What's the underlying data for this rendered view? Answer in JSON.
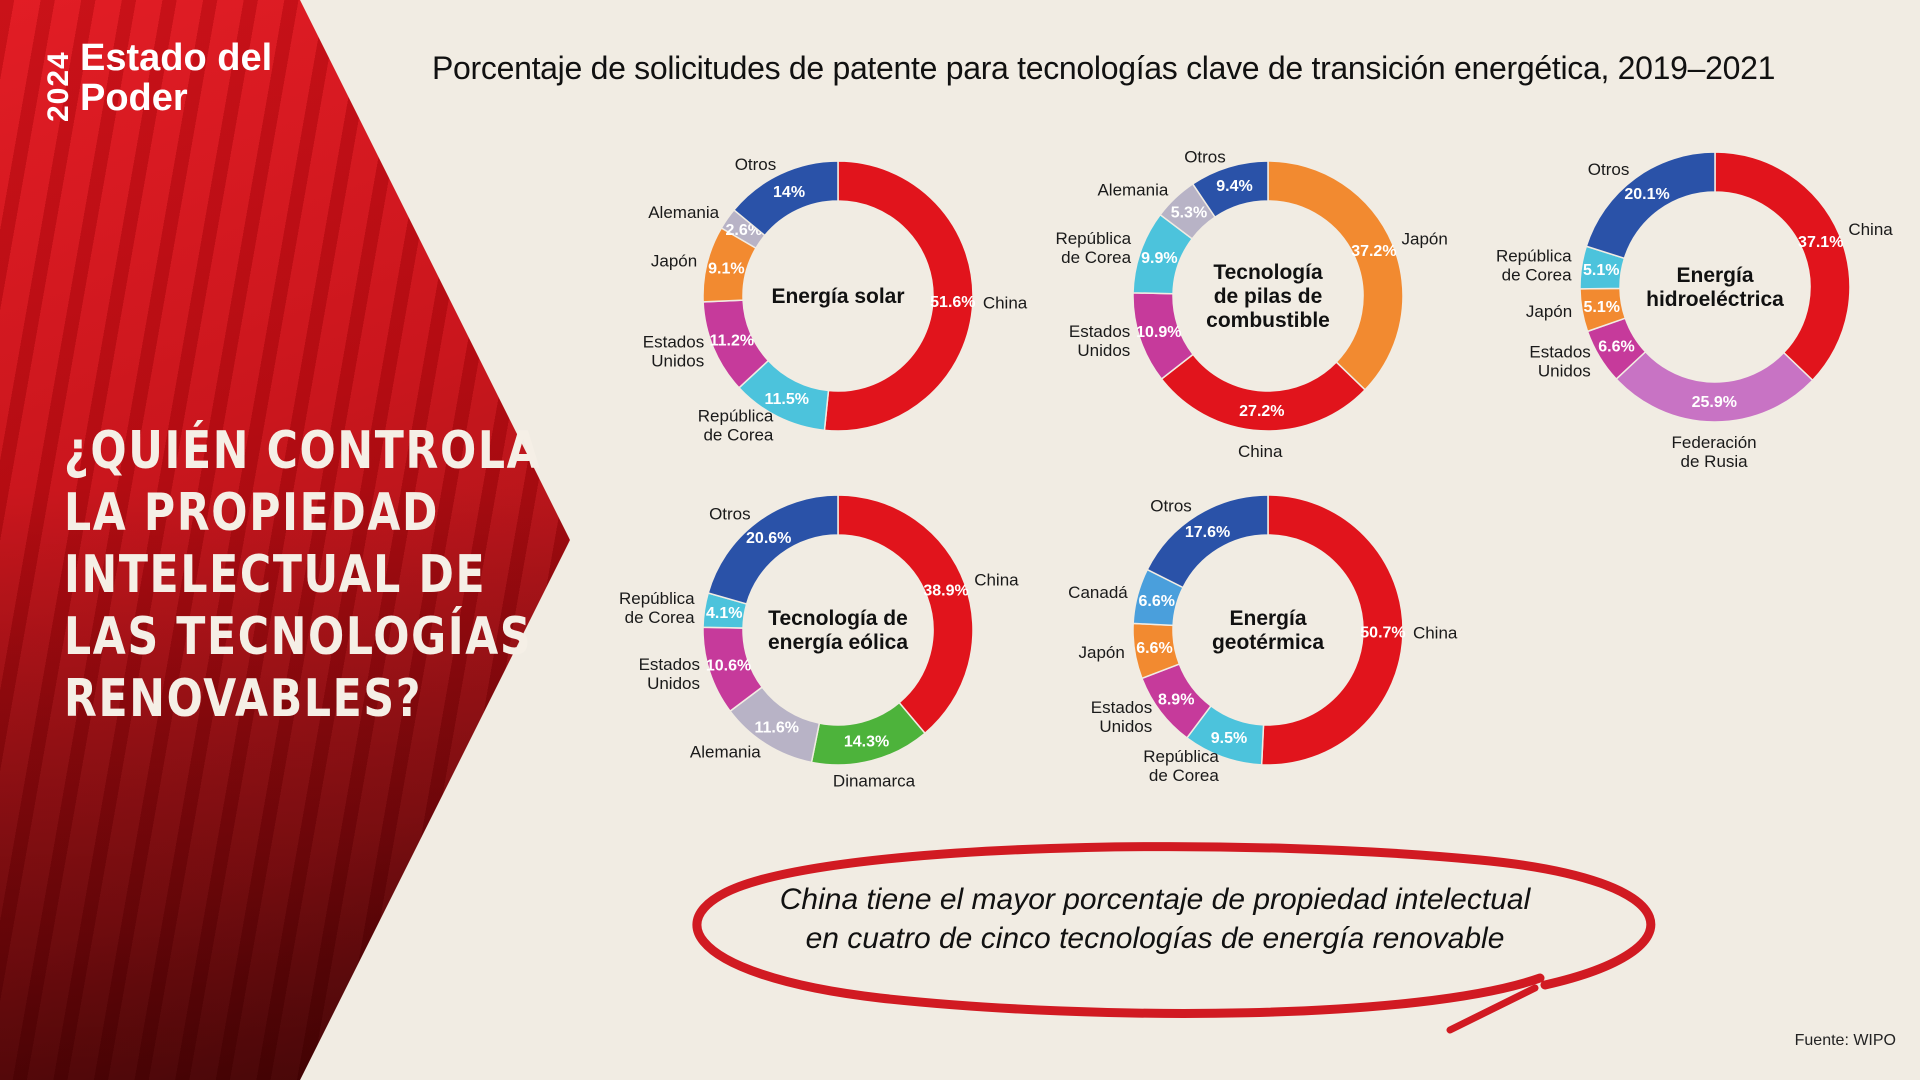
{
  "brand": {
    "year": "2024",
    "line1": "Estado del",
    "line2": "Poder"
  },
  "headline": [
    "¿QUIÉN CONTROLA",
    "LA PROPIEDAD",
    "INTELECTUAL DE",
    "LAS TECNOLOGÍAS",
    "RENOVABLES?"
  ],
  "main_title": "Porcentaje de solicitudes de patente para tecnologías clave de transición energética, 2019–2021",
  "callout": "China tiene el mayor porcentaje de propiedad intelectual en cuatro de cinco tecnologías de energía renovable",
  "source": "Fuente: WIPO",
  "colors": {
    "China": "#e1141c",
    "Japón": "#f28a30",
    "Estados Unidos": "#c63a9b",
    "República de Corea": "#4cc3dc",
    "Alemania": "#b8b3c6",
    "Otros": "#2a52a8",
    "Federación de Rusia": "#c873c4",
    "Dinamarca": "#4db33b",
    "Canadá": "#4a9fdc",
    "accent": "#d11a22"
  },
  "chart_data": [
    {
      "type": "pie",
      "title": [
        "Energía solar"
      ],
      "slices": [
        {
          "name": "China",
          "label": [
            "China"
          ],
          "value": 51.6,
          "display": "51.6%"
        },
        {
          "name": "República de Corea",
          "label": [
            "República",
            "de Corea"
          ],
          "value": 11.5,
          "display": "11.5%"
        },
        {
          "name": "Estados Unidos",
          "label": [
            "Estados",
            "Unidos"
          ],
          "value": 11.2,
          "display": "11.2%"
        },
        {
          "name": "Japón",
          "label": [
            "Japón"
          ],
          "value": 9.1,
          "display": "9.1%"
        },
        {
          "name": "Alemania",
          "label": [
            "Alemania"
          ],
          "value": 2.6,
          "display": "2.6%"
        },
        {
          "name": "Otros",
          "label": [
            "Otros"
          ],
          "value": 14.0,
          "display": "14%"
        }
      ]
    },
    {
      "type": "pie",
      "title": [
        "Tecnología",
        "de pilas de",
        "combustible"
      ],
      "slices": [
        {
          "name": "Japón",
          "label": [
            "Japón"
          ],
          "value": 37.2,
          "display": "37.2%"
        },
        {
          "name": "China",
          "label": [
            "China"
          ],
          "value": 27.2,
          "display": "27.2%"
        },
        {
          "name": "Estados Unidos",
          "label": [
            "Estados",
            "Unidos"
          ],
          "value": 10.9,
          "display": "10.9%"
        },
        {
          "name": "República de Corea",
          "label": [
            "República",
            "de Corea"
          ],
          "value": 9.9,
          "display": "9.9%"
        },
        {
          "name": "Alemania",
          "label": [
            "Alemania"
          ],
          "value": 5.3,
          "display": "5.3%"
        },
        {
          "name": "Otros",
          "label": [
            "Otros"
          ],
          "value": 9.4,
          "display": "9.4%"
        }
      ]
    },
    {
      "type": "pie",
      "title": [
        "Energía",
        "hidroeléctrica"
      ],
      "slices": [
        {
          "name": "China",
          "label": [
            "China"
          ],
          "value": 37.1,
          "display": "37.1%"
        },
        {
          "name": "Federación de Rusia",
          "label": [
            "Federación",
            "de Rusia"
          ],
          "value": 25.9,
          "display": "25.9%"
        },
        {
          "name": "Estados Unidos",
          "label": [
            "Estados",
            "Unidos"
          ],
          "value": 6.6,
          "display": "6.6%"
        },
        {
          "name": "Japón",
          "label": [
            "Japón"
          ],
          "value": 5.1,
          "display": "5.1%"
        },
        {
          "name": "República de Corea",
          "label": [
            "República",
            "de Corea"
          ],
          "value": 5.1,
          "display": "5.1%"
        },
        {
          "name": "Otros",
          "label": [
            "Otros"
          ],
          "value": 20.1,
          "display": "20.1%"
        }
      ]
    },
    {
      "type": "pie",
      "title": [
        "Tecnología de",
        "energía eólica"
      ],
      "slices": [
        {
          "name": "China",
          "label": [
            "China"
          ],
          "value": 38.9,
          "display": "38.9%"
        },
        {
          "name": "Dinamarca",
          "label": [
            "Dinamarca"
          ],
          "value": 14.3,
          "display": "14.3%"
        },
        {
          "name": "Alemania",
          "label": [
            "Alemania"
          ],
          "value": 11.6,
          "display": "11.6%"
        },
        {
          "name": "Estados Unidos",
          "label": [
            "Estados",
            "Unidos"
          ],
          "value": 10.6,
          "display": "10.6%"
        },
        {
          "name": "República de Corea",
          "label": [
            "República",
            "de Corea"
          ],
          "value": 4.1,
          "display": "4.1%"
        },
        {
          "name": "Otros",
          "label": [
            "Otros"
          ],
          "value": 20.6,
          "display": "20.6%"
        }
      ]
    },
    {
      "type": "pie",
      "title": [
        "Energía",
        "geotérmica"
      ],
      "slices": [
        {
          "name": "China",
          "label": [
            "China"
          ],
          "value": 50.7,
          "display": "50.7%"
        },
        {
          "name": "República de Corea",
          "label": [
            "República",
            "de Corea"
          ],
          "value": 9.5,
          "display": "9.5%"
        },
        {
          "name": "Estados Unidos",
          "label": [
            "Estados",
            "Unidos"
          ],
          "value": 8.9,
          "display": "8.9%"
        },
        {
          "name": "Japón",
          "label": [
            "Japón"
          ],
          "value": 6.6,
          "display": "6.6%"
        },
        {
          "name": "Canadá",
          "label": [
            "Canadá"
          ],
          "value": 6.6,
          "display": "6.6%"
        },
        {
          "name": "Otros",
          "label": [
            "Otros"
          ],
          "value": 17.6,
          "display": "17.6%"
        }
      ]
    }
  ]
}
